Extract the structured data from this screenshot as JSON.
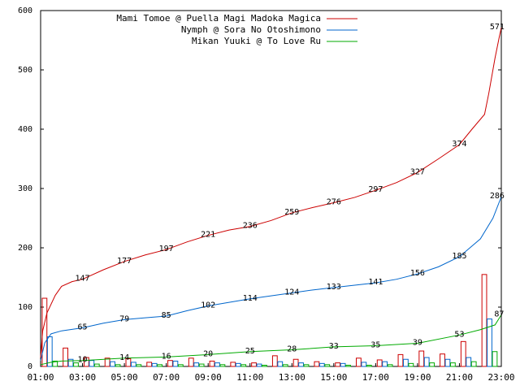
{
  "chart_data": {
    "type": "line",
    "xlim": [
      1,
      23
    ],
    "xticks": [
      {
        "value": 1,
        "label": "01:00"
      },
      {
        "value": 3,
        "label": "03:00"
      },
      {
        "value": 5,
        "label": "05:00"
      },
      {
        "value": 7,
        "label": "07:00"
      },
      {
        "value": 9,
        "label": "09:00"
      },
      {
        "value": 11,
        "label": "11:00"
      },
      {
        "value": 13,
        "label": "13:00"
      },
      {
        "value": 15,
        "label": "15:00"
      },
      {
        "value": 17,
        "label": "17:00"
      },
      {
        "value": 19,
        "label": "19:00"
      },
      {
        "value": 21,
        "label": "21:00"
      },
      {
        "value": 23,
        "label": "23:00"
      }
    ],
    "ylim": [
      0,
      600
    ],
    "yticks": [
      0,
      100,
      200,
      300,
      400,
      500,
      600
    ],
    "series": [
      {
        "name": "Mami Tomoe @ Puella Magi Madoka Magica",
        "color": "#cc0000",
        "x": [
          1,
          1.1,
          1.3,
          1.7,
          2,
          2.5,
          3,
          4,
          5,
          6,
          7,
          8,
          9,
          10,
          11,
          12,
          13,
          14,
          15,
          16,
          17,
          18,
          19,
          20,
          21,
          21.6,
          22.2,
          22.4,
          22.7,
          22.9,
          23
        ],
        "values": [
          15,
          60,
          90,
          120,
          135,
          143,
          147,
          163,
          177,
          188,
          197,
          210,
          221,
          230,
          236,
          246,
          259,
          268,
          276,
          285,
          297,
          310,
          327,
          350,
          374,
          400,
          425,
          460,
          520,
          555,
          571
        ],
        "label_x": [
          3,
          5,
          7,
          9,
          11,
          13,
          15,
          17,
          19,
          21,
          22.8
        ],
        "label_values": [
          147,
          177,
          197,
          221,
          236,
          259,
          276,
          297,
          327,
          374,
          571
        ]
      },
      {
        "name": "Nymph @ Sora No Otoshimono",
        "color": "#0066cc",
        "x": [
          1,
          1.2,
          1.5,
          2,
          3,
          4,
          5,
          6,
          7,
          8,
          9,
          10,
          11,
          12,
          13,
          14,
          15,
          16,
          17,
          18,
          19,
          20,
          21,
          22,
          22.6,
          23
        ],
        "values": [
          10,
          40,
          55,
          60,
          65,
          73,
          79,
          82,
          85,
          94,
          102,
          108,
          114,
          119,
          124,
          129,
          133,
          137,
          141,
          147,
          156,
          168,
          185,
          215,
          250,
          286
        ],
        "label_x": [
          3,
          5,
          7,
          9,
          11,
          13,
          15,
          17,
          19,
          21,
          22.8
        ],
        "label_values": [
          65,
          79,
          85,
          102,
          114,
          124,
          133,
          141,
          156,
          185,
          286
        ]
      },
      {
        "name": "Mikan Yuuki @ To Love Ru",
        "color": "#00aa00",
        "x": [
          1,
          1.5,
          2,
          3,
          5,
          7,
          9,
          11,
          13,
          15,
          17,
          19,
          21,
          22,
          22.7,
          23
        ],
        "values": [
          3,
          7,
          9,
          10,
          14,
          16,
          20,
          25,
          28,
          33,
          35,
          39,
          53,
          62,
          70,
          87
        ],
        "label_x": [
          3,
          5,
          7,
          9,
          11,
          13,
          15,
          17,
          19,
          21,
          22.9
        ],
        "label_values": [
          10,
          14,
          16,
          20,
          25,
          28,
          33,
          35,
          39,
          53,
          87
        ]
      }
    ],
    "bar_x": [
      1,
      2,
      3,
      4,
      5,
      6,
      7,
      8,
      9,
      10,
      11,
      12,
      13,
      14,
      15,
      16,
      17,
      18,
      19,
      20,
      21,
      22
    ],
    "bars": [
      {
        "color": "#cc0000",
        "values": [
          115,
          31,
          15,
          14,
          13,
          7,
          10,
          14,
          9,
          7,
          6,
          18,
          12,
          8,
          6,
          14,
          11,
          20,
          26,
          21,
          42,
          155
        ]
      },
      {
        "color": "#0066cc",
        "values": [
          50,
          12,
          10,
          8,
          7,
          5,
          9,
          6,
          6,
          5,
          4,
          8,
          6,
          5,
          5,
          7,
          8,
          12,
          15,
          12,
          15,
          80
        ]
      },
      {
        "color": "#00aa00",
        "values": [
          9,
          6,
          4,
          3,
          3,
          3,
          3,
          4,
          3,
          3,
          2,
          3,
          3,
          3,
          2,
          2,
          3,
          5,
          6,
          6,
          8,
          25
        ]
      }
    ]
  }
}
